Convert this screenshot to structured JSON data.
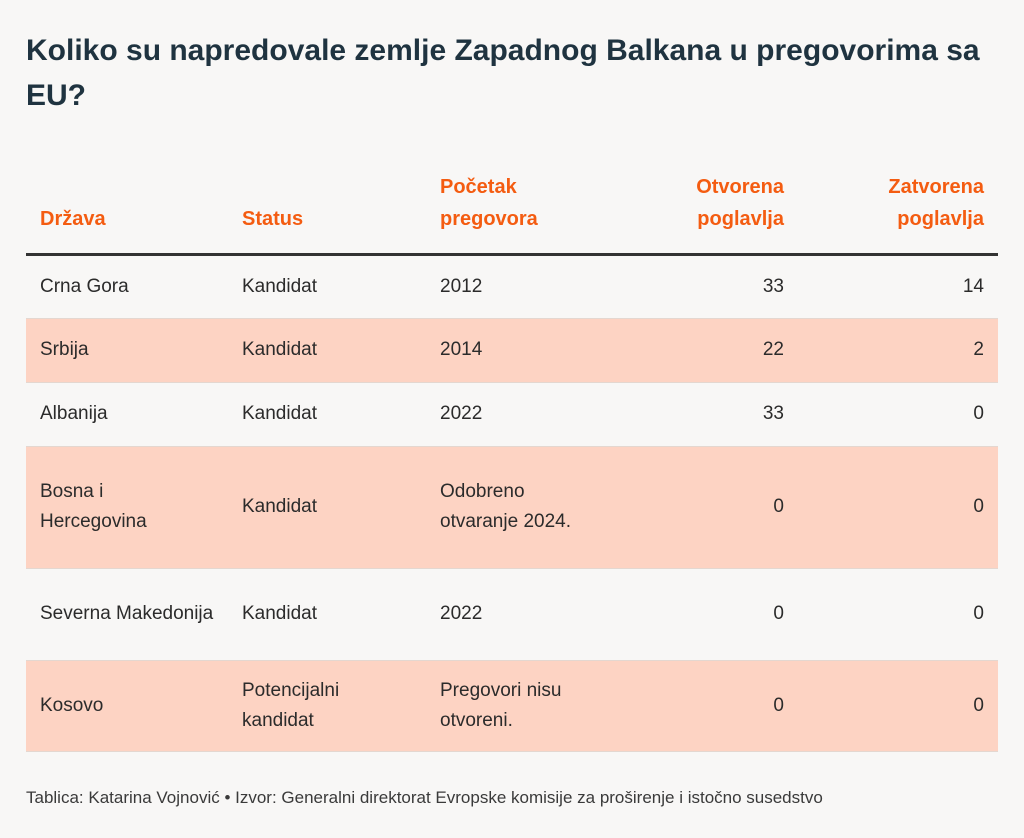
{
  "title": "Koliko su napredovale zemlje Zapadnog Balkana u pregovorima sa EU?",
  "columns": {
    "drzava": "Država",
    "status": "Status",
    "pocetak": "Početak pregovora",
    "otvorena": "Otvorena poglavlja",
    "zatvorena": "Zatvorena poglavlja"
  },
  "rows": [
    {
      "drzava": "Crna Gora",
      "status": "Kandidat",
      "pocetak": "2012",
      "otvorena": "33",
      "zatvorena": "14"
    },
    {
      "drzava": "Srbija",
      "status": "Kandidat",
      "pocetak": "2014",
      "otvorena": "22",
      "zatvorena": "2"
    },
    {
      "drzava": "Albanija",
      "status": "Kandidat",
      "pocetak": "2022",
      "otvorena": "33",
      "zatvorena": "0"
    },
    {
      "drzava": "Bosna i Hercegovina",
      "status": "Kandidat",
      "pocetak": "Odobreno otvaranje 2024.",
      "otvorena": "0",
      "zatvorena": "0"
    },
    {
      "drzava": "Severna Makedonija",
      "status": "Kandidat",
      "pocetak": "2022",
      "otvorena": "0",
      "zatvorena": "0"
    },
    {
      "drzava": "Kosovo",
      "status": "Potencijalni kandidat",
      "pocetak": "Pregovori nisu otvoreni.",
      "otvorena": "0",
      "zatvorena": "0"
    }
  ],
  "footer": "Tablica: Katarina Vojnović • Izvor: Generalni direktorat Evropske komisije za proširenje i istočno susedstvo",
  "colors": {
    "header_text": "#f45c11",
    "title_text": "#1f3340",
    "shaded_row": "#fdd3c3",
    "background": "#f8f7f6"
  },
  "chart_data": {
    "type": "table",
    "title": "Koliko su napredovale zemlje Zapadnog Balkana u pregovorima sa EU?",
    "columns": [
      "Država",
      "Status",
      "Početak pregovora",
      "Otvorena poglavlja",
      "Zatvorena poglavlja"
    ],
    "rows": [
      [
        "Crna Gora",
        "Kandidat",
        "2012",
        33,
        14
      ],
      [
        "Srbija",
        "Kandidat",
        "2014",
        22,
        2
      ],
      [
        "Albanija",
        "Kandidat",
        "2022",
        33,
        0
      ],
      [
        "Bosna i Hercegovina",
        "Kandidat",
        "Odobreno otvaranje 2024.",
        0,
        0
      ],
      [
        "Severna Makedonija",
        "Kandidat",
        "2022",
        0,
        0
      ],
      [
        "Kosovo",
        "Potencijalni kandidat",
        "Pregovori nisu otvoreni.",
        0,
        0
      ]
    ]
  }
}
